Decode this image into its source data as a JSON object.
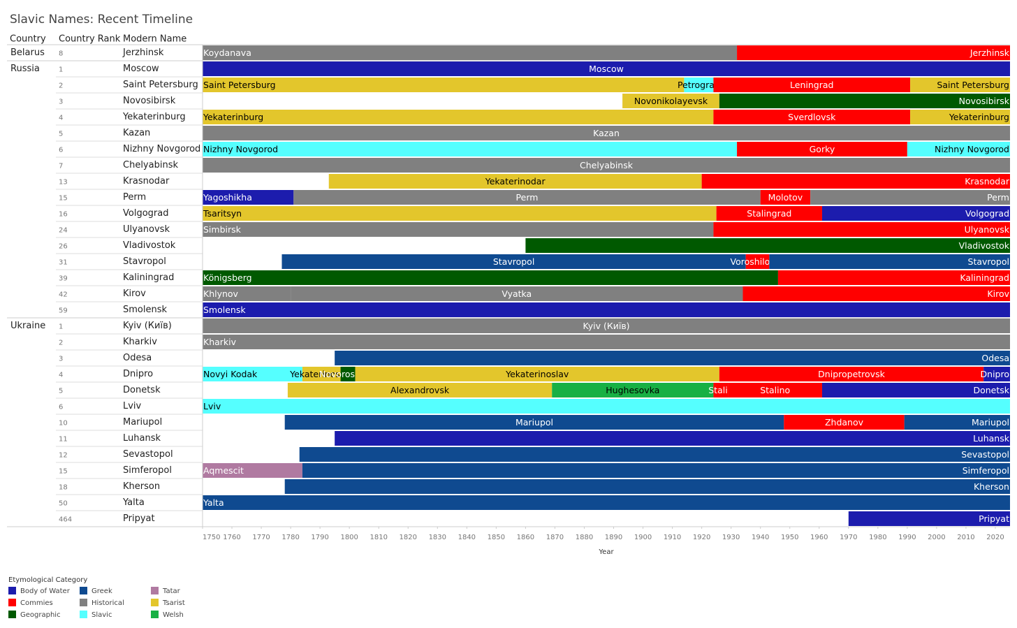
{
  "chart_data": {
    "type": "timeline",
    "title": "Slavic Names: Recent Timeline",
    "column_headers": {
      "country": "Country",
      "rank": "Country Rank",
      "name": "Modern Name"
    },
    "x_label": "Year",
    "xlim": [
      1750,
      2025
    ],
    "xticks": [
      1750,
      1760,
      1770,
      1780,
      1790,
      1800,
      1810,
      1820,
      1830,
      1840,
      1850,
      1860,
      1870,
      1880,
      1890,
      1900,
      1910,
      1920,
      1930,
      1940,
      1950,
      1960,
      1970,
      1980,
      1990,
      2000,
      2010,
      2020
    ],
    "legend_title": "Etymological Category",
    "categories": [
      {
        "name": "Body of Water",
        "color": "#1c1cad",
        "text_color": "#ffffff"
      },
      {
        "name": "Commies",
        "color": "#ff0000",
        "text_color": "#ffffff"
      },
      {
        "name": "Geographic",
        "color": "#005900",
        "text_color": "#ffffff"
      },
      {
        "name": "Greek",
        "color": "#0f4a90",
        "text_color": "#ffffff"
      },
      {
        "name": "Historical",
        "color": "#808080",
        "text_color": "#ffffff"
      },
      {
        "name": "Slavic",
        "color": "#55ffff",
        "text_color": "#000000"
      },
      {
        "name": "Tatar",
        "color": "#b07aa1",
        "text_color": "#ffffff"
      },
      {
        "name": "Tsarist",
        "color": "#e3c62c",
        "text_color": "#000000"
      },
      {
        "name": "Welsh",
        "color": "#18b044",
        "text_color": "#000000"
      }
    ],
    "groups": [
      {
        "country": "Belarus",
        "rows": [
          {
            "rank": 8,
            "name": "Jerzhinsk",
            "segments": [
              {
                "label": "Koydanava",
                "start": 1750,
                "end": 1932,
                "category": "Historical"
              },
              {
                "label": "Jerzhinsk",
                "start": 1932,
                "end": 2025,
                "category": "Commies"
              }
            ]
          }
        ]
      },
      {
        "country": "Russia",
        "rows": [
          {
            "rank": 1,
            "name": "Moscow",
            "segments": [
              {
                "label": "Moscow",
                "start": 1750,
                "end": 2025,
                "category": "Body of Water"
              }
            ]
          },
          {
            "rank": 2,
            "name": "Saint Petersburg",
            "segments": [
              {
                "label": "Saint Petersburg",
                "start": 1750,
                "end": 1914,
                "category": "Tsarist"
              },
              {
                "label": "Petrograd",
                "start": 1914,
                "end": 1924,
                "category": "Slavic"
              },
              {
                "label": "Leningrad",
                "start": 1924,
                "end": 1991,
                "category": "Commies"
              },
              {
                "label": "Saint Petersburg",
                "start": 1991,
                "end": 2025,
                "category": "Tsarist"
              }
            ]
          },
          {
            "rank": 3,
            "name": "Novosibirsk",
            "segments": [
              {
                "label": "Novonikolayevsk",
                "start": 1893,
                "end": 1926,
                "category": "Tsarist"
              },
              {
                "label": "Novosibirsk",
                "start": 1926,
                "end": 2025,
                "category": "Geographic"
              }
            ]
          },
          {
            "rank": 4,
            "name": "Yekaterinburg",
            "segments": [
              {
                "label": "Yekaterinburg",
                "start": 1750,
                "end": 1924,
                "category": "Tsarist"
              },
              {
                "label": "Sverdlovsk",
                "start": 1924,
                "end": 1991,
                "category": "Commies"
              },
              {
                "label": "Yekaterinburg",
                "start": 1991,
                "end": 2025,
                "category": "Tsarist"
              }
            ]
          },
          {
            "rank": 5,
            "name": "Kazan",
            "segments": [
              {
                "label": "Kazan",
                "start": 1750,
                "end": 2025,
                "category": "Historical"
              }
            ]
          },
          {
            "rank": 6,
            "name": "Nizhny Novgorod",
            "segments": [
              {
                "label": "Nizhny Novgorod",
                "start": 1750,
                "end": 1932,
                "category": "Slavic"
              },
              {
                "label": "Gorky",
                "start": 1932,
                "end": 1990,
                "category": "Commies"
              },
              {
                "label": "Nizhny Novgorod",
                "start": 1990,
                "end": 2025,
                "category": "Slavic"
              }
            ]
          },
          {
            "rank": 7,
            "name": "Chelyabinsk",
            "segments": [
              {
                "label": "Chelyabinsk",
                "start": 1750,
                "end": 2025,
                "category": "Historical"
              }
            ]
          },
          {
            "rank": 13,
            "name": "Krasnodar",
            "segments": [
              {
                "label": "Yekaterinodar",
                "start": 1793,
                "end": 1920,
                "category": "Tsarist"
              },
              {
                "label": "Krasnodar",
                "start": 1920,
                "end": 2025,
                "category": "Commies"
              }
            ]
          },
          {
            "rank": 15,
            "name": "Perm",
            "segments": [
              {
                "label": "Yagoshikha",
                "start": 1750,
                "end": 1781,
                "category": "Body of Water"
              },
              {
                "label": "Perm",
                "start": 1781,
                "end": 1940,
                "category": "Historical"
              },
              {
                "label": "Molotov",
                "start": 1940,
                "end": 1957,
                "category": "Commies"
              },
              {
                "label": "Perm",
                "start": 1957,
                "end": 2025,
                "category": "Historical"
              }
            ]
          },
          {
            "rank": 16,
            "name": "Volgograd",
            "segments": [
              {
                "label": "Tsaritsyn",
                "start": 1750,
                "end": 1925,
                "category": "Tsarist"
              },
              {
                "label": "Stalingrad",
                "start": 1925,
                "end": 1961,
                "category": "Commies"
              },
              {
                "label": "Volgograd",
                "start": 1961,
                "end": 2025,
                "category": "Body of Water"
              }
            ]
          },
          {
            "rank": 24,
            "name": "Ulyanovsk",
            "segments": [
              {
                "label": "Simbirsk",
                "start": 1750,
                "end": 1924,
                "category": "Historical"
              },
              {
                "label": "Ulyanovsk",
                "start": 1924,
                "end": 2025,
                "category": "Commies"
              }
            ]
          },
          {
            "rank": 26,
            "name": "Vladivostok",
            "segments": [
              {
                "label": "Vladivostok",
                "start": 1860,
                "end": 2025,
                "category": "Geographic"
              }
            ]
          },
          {
            "rank": 31,
            "name": "Stavropol",
            "segments": [
              {
                "label": "Stavropol",
                "start": 1777,
                "end": 1935,
                "category": "Greek"
              },
              {
                "label": "Voroshilovsk",
                "start": 1935,
                "end": 1943,
                "category": "Commies"
              },
              {
                "label": "Stavropol",
                "start": 1943,
                "end": 2025,
                "category": "Greek"
              }
            ]
          },
          {
            "rank": 39,
            "name": "Kaliningrad",
            "segments": [
              {
                "label": "Königsberg",
                "start": 1750,
                "end": 1946,
                "category": "Geographic"
              },
              {
                "label": "Kaliningrad",
                "start": 1946,
                "end": 2025,
                "category": "Commies"
              }
            ]
          },
          {
            "rank": 42,
            "name": "Kirov",
            "segments": [
              {
                "label": "Khlynov",
                "start": 1750,
                "end": 1780,
                "category": "Historical"
              },
              {
                "label": "Vyatka",
                "start": 1780,
                "end": 1934,
                "category": "Historical"
              },
              {
                "label": "Kirov",
                "start": 1934,
                "end": 2025,
                "category": "Commies"
              }
            ]
          },
          {
            "rank": 59,
            "name": "Smolensk",
            "segments": [
              {
                "label": "Smolensk",
                "start": 1750,
                "end": 2025,
                "category": "Body of Water"
              }
            ]
          }
        ]
      },
      {
        "country": "Ukraine",
        "rows": [
          {
            "rank": 1,
            "name": "Kyiv (Київ)",
            "segments": [
              {
                "label": "Kyiv (Київ)",
                "start": 1750,
                "end": 2025,
                "category": "Historical"
              }
            ]
          },
          {
            "rank": 2,
            "name": "Kharkiv",
            "segments": [
              {
                "label": "Kharkiv",
                "start": 1750,
                "end": 2025,
                "category": "Historical"
              }
            ]
          },
          {
            "rank": 3,
            "name": "Odesa",
            "segments": [
              {
                "label": "Odesa",
                "start": 1795,
                "end": 2025,
                "category": "Greek"
              }
            ]
          },
          {
            "rank": 4,
            "name": "Dnipro",
            "segments": [
              {
                "label": "Novyi Kodak",
                "start": 1750,
                "end": 1784,
                "category": "Slavic"
              },
              {
                "label": "Yekaterinoslav",
                "start": 1784,
                "end": 1797,
                "category": "Tsarist"
              },
              {
                "label": "Novorossiysk",
                "start": 1797,
                "end": 1802,
                "category": "Geographic"
              },
              {
                "label": "Yekaterinoslav",
                "start": 1802,
                "end": 1926,
                "category": "Tsarist"
              },
              {
                "label": "Dnipropetrovsk",
                "start": 1926,
                "end": 2016,
                "category": "Commies"
              },
              {
                "label": "Dnipro",
                "start": 2016,
                "end": 2025,
                "category": "Body of Water"
              }
            ]
          },
          {
            "rank": 5,
            "name": "Donetsk",
            "segments": [
              {
                "label": "Alexandrovsk",
                "start": 1779,
                "end": 1869,
                "category": "Tsarist"
              },
              {
                "label": "Hughesovka",
                "start": 1869,
                "end": 1924,
                "category": "Welsh"
              },
              {
                "label": "Stalin",
                "start": 1924,
                "end": 1929,
                "category": "Commies"
              },
              {
                "label": "Stalino",
                "start": 1929,
                "end": 1961,
                "category": "Commies"
              },
              {
                "label": "Donetsk",
                "start": 1961,
                "end": 2025,
                "category": "Body of Water"
              }
            ]
          },
          {
            "rank": 6,
            "name": "Lviv",
            "segments": [
              {
                "label": "Lviv",
                "start": 1750,
                "end": 2025,
                "category": "Slavic"
              }
            ]
          },
          {
            "rank": 10,
            "name": "Mariupol",
            "segments": [
              {
                "label": "Mariupol",
                "start": 1778,
                "end": 1948,
                "category": "Greek"
              },
              {
                "label": "Zhdanov",
                "start": 1948,
                "end": 1989,
                "category": "Commies"
              },
              {
                "label": "Mariupol",
                "start": 1989,
                "end": 2025,
                "category": "Greek"
              }
            ]
          },
          {
            "rank": 11,
            "name": "Luhansk",
            "segments": [
              {
                "label": "Luhansk",
                "start": 1795,
                "end": 2025,
                "category": "Body of Water"
              }
            ]
          },
          {
            "rank": 12,
            "name": "Sevastopol",
            "segments": [
              {
                "label": "Sevastopol",
                "start": 1783,
                "end": 2025,
                "category": "Greek"
              }
            ]
          },
          {
            "rank": 15,
            "name": "Simferopol",
            "segments": [
              {
                "label": "Aqmescit",
                "start": 1750,
                "end": 1784,
                "category": "Tatar"
              },
              {
                "label": "Simferopol",
                "start": 1784,
                "end": 2025,
                "category": "Greek"
              }
            ]
          },
          {
            "rank": 18,
            "name": "Kherson",
            "segments": [
              {
                "label": "Kherson",
                "start": 1778,
                "end": 2025,
                "category": "Greek"
              }
            ]
          },
          {
            "rank": 50,
            "name": "Yalta",
            "segments": [
              {
                "label": "Yalta",
                "start": 1750,
                "end": 2025,
                "category": "Greek"
              }
            ]
          },
          {
            "rank": 464,
            "name": "Pripyat",
            "segments": [
              {
                "label": "Pripyat",
                "start": 1970,
                "end": 2025,
                "category": "Body of Water"
              }
            ]
          }
        ]
      }
    ]
  }
}
